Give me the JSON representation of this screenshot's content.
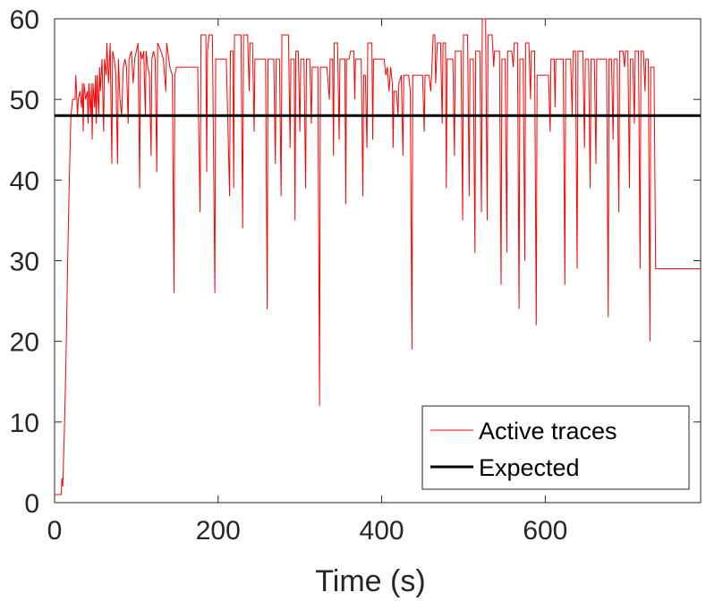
{
  "chart_data": {
    "type": "line",
    "title": "",
    "xlabel": "Time (s)",
    "ylabel": "",
    "xlim": [
      0,
      790
    ],
    "ylim": [
      0,
      60
    ],
    "x_ticks": [
      0,
      200,
      400,
      600
    ],
    "y_ticks": [
      0,
      10,
      20,
      30,
      40,
      50,
      60
    ],
    "grid": false,
    "legend_position": "bottom-right",
    "series": [
      {
        "name": "Active traces",
        "color": "#ff0000",
        "step": true,
        "points": [
          [
            0,
            1
          ],
          [
            8,
            1
          ],
          [
            9,
            3
          ],
          [
            10,
            2
          ],
          [
            12,
            9
          ],
          [
            14,
            18
          ],
          [
            16,
            30
          ],
          [
            18,
            40
          ],
          [
            20,
            48
          ],
          [
            22,
            50
          ],
          [
            25,
            50
          ],
          [
            26,
            53
          ],
          [
            28,
            48
          ],
          [
            29,
            50
          ],
          [
            31,
            51
          ],
          [
            33,
            49
          ],
          [
            34,
            52
          ],
          [
            35,
            46
          ],
          [
            36,
            52
          ],
          [
            38,
            50
          ],
          [
            40,
            51
          ],
          [
            41,
            47
          ],
          [
            42,
            52
          ],
          [
            44,
            48
          ],
          [
            45,
            52
          ],
          [
            46,
            45
          ],
          [
            47,
            52
          ],
          [
            49,
            49
          ],
          [
            50,
            53
          ],
          [
            51,
            47
          ],
          [
            52,
            53
          ],
          [
            54,
            48
          ],
          [
            55,
            54
          ],
          [
            56,
            51
          ],
          [
            58,
            55
          ],
          [
            60,
            46
          ],
          [
            61,
            55
          ],
          [
            63,
            53
          ],
          [
            64,
            57
          ],
          [
            66,
            52
          ],
          [
            68,
            57
          ],
          [
            70,
            42
          ],
          [
            71,
            56
          ],
          [
            73,
            55
          ],
          [
            75,
            53
          ],
          [
            77,
            42
          ],
          [
            78,
            55
          ],
          [
            80,
            50
          ],
          [
            82,
            48
          ],
          [
            84,
            54
          ],
          [
            86,
            55
          ],
          [
            88,
            54
          ],
          [
            90,
            47
          ],
          [
            91,
            55
          ],
          [
            94,
            56
          ],
          [
            96,
            52
          ],
          [
            98,
            55
          ],
          [
            100,
            56
          ],
          [
            102,
            57
          ],
          [
            104,
            39
          ],
          [
            105,
            56
          ],
          [
            107,
            55
          ],
          [
            109,
            56
          ],
          [
            111,
            48
          ],
          [
            112,
            56
          ],
          [
            114,
            54
          ],
          [
            116,
            53
          ],
          [
            118,
            43
          ],
          [
            119,
            55
          ],
          [
            121,
            56
          ],
          [
            123,
            55
          ],
          [
            125,
            41
          ],
          [
            126,
            57
          ],
          [
            130,
            56
          ],
          [
            133,
            55
          ],
          [
            136,
            51
          ],
          [
            137,
            57
          ],
          [
            141,
            54
          ],
          [
            144,
            53
          ],
          [
            146,
            26
          ],
          [
            147,
            53
          ],
          [
            149,
            54
          ],
          [
            162,
            54
          ],
          [
            175,
            54
          ],
          [
            178,
            36
          ],
          [
            179,
            58
          ],
          [
            185,
            58
          ],
          [
            186,
            41
          ],
          [
            187,
            56
          ],
          [
            189,
            58
          ],
          [
            193,
            58
          ],
          [
            196,
            26
          ],
          [
            197,
            55
          ],
          [
            210,
            55
          ],
          [
            214,
            38
          ],
          [
            215,
            56
          ],
          [
            218,
            56
          ],
          [
            219,
            39
          ],
          [
            220,
            58
          ],
          [
            228,
            58
          ],
          [
            230,
            34
          ],
          [
            231,
            58
          ],
          [
            236,
            58
          ],
          [
            238,
            51
          ],
          [
            239,
            57
          ],
          [
            242,
            57
          ],
          [
            244,
            46
          ],
          [
            245,
            55
          ],
          [
            258,
            55
          ],
          [
            260,
            24
          ],
          [
            261,
            55
          ],
          [
            268,
            55
          ],
          [
            270,
            42
          ],
          [
            271,
            55
          ],
          [
            275,
            55
          ],
          [
            277,
            38
          ],
          [
            278,
            58
          ],
          [
            286,
            58
          ],
          [
            288,
            44
          ],
          [
            289,
            55
          ],
          [
            293,
            55
          ],
          [
            294,
            35
          ],
          [
            295,
            56
          ],
          [
            298,
            56
          ],
          [
            300,
            46
          ],
          [
            301,
            55
          ],
          [
            305,
            55
          ],
          [
            307,
            39
          ],
          [
            308,
            55
          ],
          [
            312,
            55
          ],
          [
            314,
            47
          ],
          [
            315,
            54
          ],
          [
            322,
            54
          ],
          [
            324,
            12
          ],
          [
            325,
            54
          ],
          [
            333,
            54
          ],
          [
            336,
            50
          ],
          [
            337,
            55
          ],
          [
            340,
            55
          ],
          [
            341,
            43
          ],
          [
            342,
            57
          ],
          [
            346,
            57
          ],
          [
            348,
            45
          ],
          [
            349,
            55
          ],
          [
            355,
            55
          ],
          [
            356,
            37
          ],
          [
            357,
            55
          ],
          [
            360,
            55
          ],
          [
            362,
            56
          ],
          [
            366,
            56
          ],
          [
            367,
            50
          ],
          [
            368,
            55
          ],
          [
            375,
            55
          ],
          [
            377,
            38
          ],
          [
            378,
            53
          ],
          [
            380,
            53
          ],
          [
            382,
            44
          ],
          [
            383,
            57
          ],
          [
            388,
            57
          ],
          [
            389,
            45
          ],
          [
            390,
            55
          ],
          [
            403,
            55
          ],
          [
            405,
            53
          ],
          [
            407,
            54
          ],
          [
            409,
            51
          ],
          [
            411,
            54
          ],
          [
            413,
            52
          ],
          [
            414,
            44
          ],
          [
            415,
            51
          ],
          [
            418,
            51
          ],
          [
            420,
            48
          ],
          [
            421,
            52
          ],
          [
            424,
            53
          ],
          [
            426,
            43
          ],
          [
            427,
            53
          ],
          [
            433,
            53
          ],
          [
            435,
            51
          ],
          [
            437,
            19
          ],
          [
            438,
            53
          ],
          [
            450,
            53
          ],
          [
            452,
            46
          ],
          [
            453,
            53
          ],
          [
            458,
            53
          ],
          [
            460,
            51
          ],
          [
            461,
            53
          ],
          [
            463,
            58
          ],
          [
            465,
            58
          ],
          [
            466,
            52
          ],
          [
            468,
            57
          ],
          [
            472,
            57
          ],
          [
            474,
            47
          ],
          [
            475,
            57
          ],
          [
            478,
            57
          ],
          [
            479,
            39
          ],
          [
            480,
            55
          ],
          [
            487,
            55
          ],
          [
            489,
            43
          ],
          [
            490,
            56
          ],
          [
            497,
            56
          ],
          [
            499,
            35
          ],
          [
            500,
            58
          ],
          [
            505,
            58
          ],
          [
            507,
            38
          ],
          [
            508,
            55
          ],
          [
            512,
            55
          ],
          [
            514,
            31
          ],
          [
            515,
            56
          ],
          [
            520,
            56
          ],
          [
            522,
            36
          ],
          [
            523,
            60
          ],
          [
            527,
            60
          ],
          [
            529,
            35
          ],
          [
            530,
            58
          ],
          [
            535,
            58
          ],
          [
            537,
            54
          ],
          [
            538,
            56
          ],
          [
            544,
            56
          ],
          [
            546,
            27
          ],
          [
            547,
            55
          ],
          [
            551,
            55
          ],
          [
            553,
            31
          ],
          [
            554,
            56
          ],
          [
            559,
            56
          ],
          [
            561,
            54
          ],
          [
            562,
            57
          ],
          [
            566,
            57
          ],
          [
            568,
            24
          ],
          [
            569,
            55
          ],
          [
            573,
            55
          ],
          [
            575,
            30
          ],
          [
            576,
            57
          ],
          [
            580,
            57
          ],
          [
            582,
            50
          ],
          [
            583,
            56
          ],
          [
            587,
            56
          ],
          [
            589,
            22
          ],
          [
            590,
            53
          ],
          [
            604,
            53
          ],
          [
            606,
            46
          ],
          [
            607,
            55
          ],
          [
            611,
            55
          ],
          [
            612,
            49
          ],
          [
            613,
            55
          ],
          [
            622,
            55
          ],
          [
            624,
            27
          ],
          [
            625,
            55
          ],
          [
            631,
            55
          ],
          [
            633,
            48
          ],
          [
            634,
            56
          ],
          [
            637,
            56
          ],
          [
            639,
            29
          ],
          [
            640,
            56
          ],
          [
            646,
            56
          ],
          [
            648,
            44
          ],
          [
            649,
            55
          ],
          [
            653,
            55
          ],
          [
            655,
            39
          ],
          [
            656,
            55
          ],
          [
            660,
            55
          ],
          [
            662,
            42
          ],
          [
            663,
            55
          ],
          [
            675,
            55
          ],
          [
            677,
            23
          ],
          [
            678,
            55
          ],
          [
            681,
            55
          ],
          [
            683,
            45
          ],
          [
            684,
            55
          ],
          [
            688,
            55
          ],
          [
            690,
            36
          ],
          [
            691,
            56
          ],
          [
            695,
            56
          ],
          [
            697,
            54
          ],
          [
            698,
            56
          ],
          [
            701,
            56
          ],
          [
            703,
            39
          ],
          [
            704,
            55
          ],
          [
            707,
            55
          ],
          [
            709,
            47
          ],
          [
            710,
            56
          ],
          [
            714,
            56
          ],
          [
            716,
            29
          ],
          [
            717,
            56
          ],
          [
            720,
            56
          ],
          [
            722,
            51
          ],
          [
            723,
            55
          ],
          [
            726,
            55
          ],
          [
            728,
            20
          ],
          [
            729,
            54
          ],
          [
            733,
            54
          ],
          [
            735,
            29
          ],
          [
            736,
            29
          ],
          [
            790,
            29
          ]
        ]
      },
      {
        "name": "Expected",
        "color": "#000000",
        "step": false,
        "points": [
          [
            0,
            48
          ],
          [
            790,
            48
          ]
        ]
      }
    ]
  }
}
